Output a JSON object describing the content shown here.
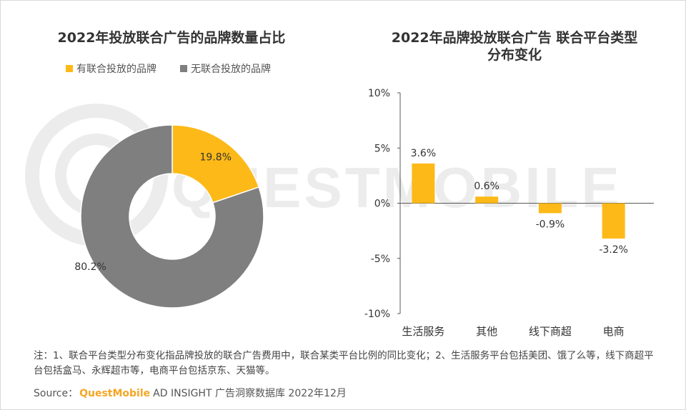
{
  "watermark": "QUESTMOBILE",
  "colors": {
    "yellow": "#fdb917",
    "gray": "#7f7f7f",
    "axis": "#595959"
  },
  "chart_data": [
    {
      "type": "pie",
      "title": "2022年投放联合广告的品牌数量占比",
      "donut": true,
      "legend_position": "top",
      "slices": [
        {
          "label": "有联合投放的品牌",
          "value": 19.8,
          "value_label": "19.8%",
          "color": "#fdb917"
        },
        {
          "label": "无联合投放的品牌",
          "value": 80.2,
          "value_label": "80.2%",
          "color": "#7f7f7f"
        }
      ]
    },
    {
      "type": "bar",
      "title": "2022年品牌投放联合广告 联合平台类型分布变化",
      "title_lines": [
        "2022年品牌投放联合广告 联合平台类型",
        "分布变化"
      ],
      "categories": [
        "生活服务",
        "其他",
        "线下商超",
        "电商"
      ],
      "values": [
        3.6,
        0.6,
        -0.9,
        -3.2
      ],
      "value_labels": [
        "3.6%",
        "0.6%",
        "-0.9%",
        "-3.2%"
      ],
      "ylim": [
        -10,
        10
      ],
      "yticks": [
        10,
        5,
        0,
        -5,
        -10
      ],
      "ytick_labels": [
        "10%",
        "5%",
        "0%",
        "-5%",
        "-10%"
      ],
      "grid": false,
      "bar_color": "#fdb917"
    }
  ],
  "note": "注：1、联合平台类型分布变化指品牌投放的联合广告费用中，联合某类平台比例的同比变化；2、生活服务平台包括美团、饿了么等，线下商超平台包括盒马、永辉超市等，电商平台包括京东、天猫等。",
  "source": {
    "label": "Source：",
    "brand": "QuestMobile",
    "text": "AD INSIGHT 广告洞察数据库 2022年12月"
  }
}
